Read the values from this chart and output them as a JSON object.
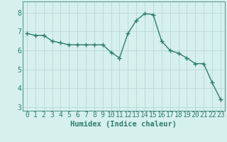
{
  "x": [
    0,
    1,
    2,
    3,
    4,
    5,
    6,
    7,
    8,
    9,
    10,
    11,
    12,
    13,
    14,
    15,
    16,
    17,
    18,
    19,
    20,
    21,
    22,
    23
  ],
  "y": [
    6.9,
    6.8,
    6.8,
    6.5,
    6.4,
    6.3,
    6.3,
    6.3,
    6.3,
    6.3,
    5.9,
    5.6,
    6.9,
    7.6,
    7.95,
    7.9,
    6.5,
    6.0,
    5.85,
    5.6,
    5.3,
    5.3,
    4.3,
    3.4
  ],
  "line_color": "#2e7d6e",
  "marker": "D",
  "marker_size": 2.5,
  "bg_color": "#d6f0ee",
  "grid_color": "#b8d8d4",
  "xlabel": "Humidex (Indice chaleur)",
  "xlim": [
    -0.5,
    23.5
  ],
  "ylim": [
    2.8,
    8.6
  ],
  "yticks": [
    3,
    4,
    5,
    6,
    7,
    8
  ],
  "xticks": [
    0,
    1,
    2,
    3,
    4,
    5,
    6,
    7,
    8,
    9,
    10,
    11,
    12,
    13,
    14,
    15,
    16,
    17,
    18,
    19,
    20,
    21,
    22,
    23
  ],
  "xlabel_fontsize": 7.5,
  "tick_fontsize": 7,
  "line_width": 1.0,
  "tick_color": "#2e7d6e",
  "spine_color": "#5a9a90"
}
